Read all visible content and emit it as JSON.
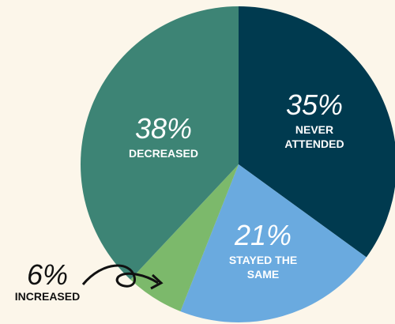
{
  "chart_data": {
    "type": "pie",
    "categories": [
      "NEVER ATTENDED",
      "STAYED THE SAME",
      "INCREASED",
      "DECREASED"
    ],
    "values": [
      35,
      21,
      6,
      38
    ],
    "value_labels": [
      "35%",
      "21%",
      "6%",
      "38%"
    ],
    "colors": [
      "#003a4f",
      "#6aaadf",
      "#7cb96b",
      "#3d8475"
    ]
  }
}
